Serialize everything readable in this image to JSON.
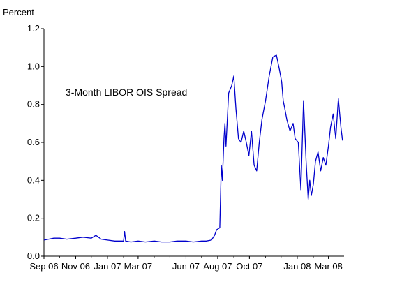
{
  "chart_data": {
    "type": "line",
    "title": "",
    "xlabel": "",
    "ylabel": "Percent",
    "annotation": "3-Month LIBOR OIS Spread",
    "ylim": [
      0.0,
      1.2
    ],
    "xlim": [
      "2006-09-01",
      "2008-03-31"
    ],
    "y_ticks": [
      "0.0",
      "0.2",
      "0.4",
      "0.6",
      "0.8",
      "1.0",
      "1.2"
    ],
    "x_ticks": [
      "Sep 06",
      "Nov 06",
      "Jan 07",
      "Mar 07",
      "Jun 07",
      "Aug 07",
      "Oct 07",
      "Jan 08",
      "Mar 08"
    ],
    "grid": false,
    "legend": "none",
    "line_color": "#0000CC",
    "series": [
      {
        "x": [
          "2006-09-01",
          "2006-09-10",
          "2006-09-20",
          "2006-10-01",
          "2006-10-15",
          "2006-11-01",
          "2006-11-15",
          "2006-12-01",
          "2006-12-10",
          "2006-12-20",
          "2007-01-01",
          "2007-01-15",
          "2007-02-01",
          "2007-02-03",
          "2007-02-05",
          "2007-02-15",
          "2007-03-01",
          "2007-03-15",
          "2007-04-01",
          "2007-04-15",
          "2007-05-01",
          "2007-05-15",
          "2007-06-01",
          "2007-06-15",
          "2007-07-01",
          "2007-07-10",
          "2007-07-20",
          "2007-07-26",
          "2007-07-30",
          "2007-08-05",
          "2007-08-08",
          "2007-08-10",
          "2007-08-13",
          "2007-08-15",
          "2007-08-17",
          "2007-08-22",
          "2007-08-28",
          "2007-09-01",
          "2007-09-05",
          "2007-09-10",
          "2007-09-15",
          "2007-09-20",
          "2007-09-25",
          "2007-09-30",
          "2007-10-05",
          "2007-10-10",
          "2007-10-15",
          "2007-10-20",
          "2007-10-25",
          "2007-11-01",
          "2007-11-08",
          "2007-11-15",
          "2007-11-22",
          "2007-11-28",
          "2007-12-02",
          "2007-12-05",
          "2007-12-08",
          "2007-12-12",
          "2007-12-18",
          "2007-12-24",
          "2007-12-28",
          "2008-01-03",
          "2008-01-08",
          "2008-01-13",
          "2008-01-18",
          "2008-01-22",
          "2008-01-25",
          "2008-01-28",
          "2008-02-01",
          "2008-02-05",
          "2008-02-10",
          "2008-02-15",
          "2008-02-20",
          "2008-02-25",
          "2008-03-01",
          "2008-03-05",
          "2008-03-10",
          "2008-03-15",
          "2008-03-20",
          "2008-03-25",
          "2008-03-28"
        ],
        "y": [
          0.085,
          0.09,
          0.095,
          0.095,
          0.09,
          0.095,
          0.1,
          0.095,
          0.11,
          0.09,
          0.085,
          0.08,
          0.08,
          0.13,
          0.08,
          0.075,
          0.08,
          0.075,
          0.08,
          0.075,
          0.075,
          0.08,
          0.08,
          0.075,
          0.08,
          0.08,
          0.085,
          0.11,
          0.14,
          0.15,
          0.48,
          0.4,
          0.62,
          0.7,
          0.58,
          0.86,
          0.9,
          0.95,
          0.78,
          0.62,
          0.6,
          0.66,
          0.6,
          0.53,
          0.66,
          0.48,
          0.45,
          0.6,
          0.72,
          0.82,
          0.95,
          1.05,
          1.06,
          0.98,
          0.92,
          0.82,
          0.78,
          0.72,
          0.66,
          0.7,
          0.62,
          0.6,
          0.35,
          0.82,
          0.5,
          0.3,
          0.4,
          0.32,
          0.38,
          0.5,
          0.55,
          0.45,
          0.52,
          0.48,
          0.58,
          0.68,
          0.75,
          0.62,
          0.83,
          0.68,
          0.61
        ]
      }
    ]
  }
}
